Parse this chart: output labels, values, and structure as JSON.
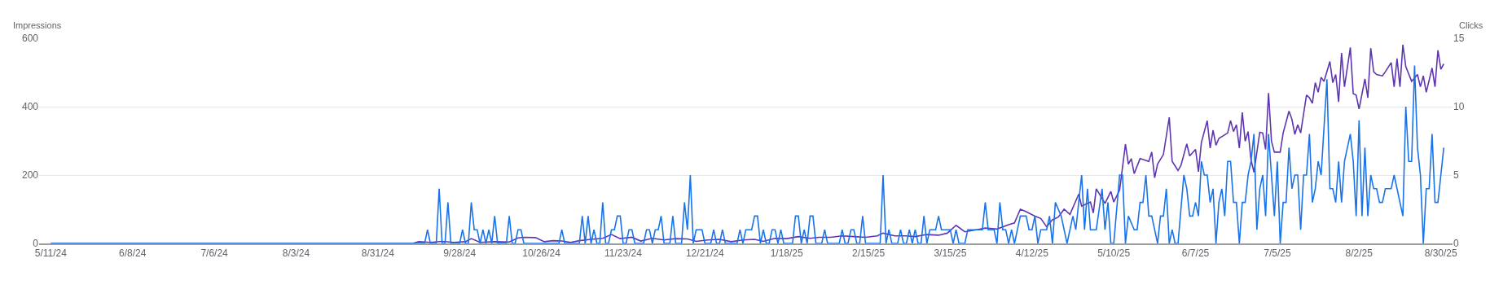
{
  "chart_data": {
    "type": "line",
    "ylabel": "Impressions",
    "y2label": "Clicks",
    "xlim": [
      "2024-05-07",
      "2025-09-03"
    ],
    "xticks": [
      {
        "value": "2024-05-11",
        "label": "5/11/24"
      },
      {
        "value": "2024-06-08",
        "label": "6/8/24"
      },
      {
        "value": "2024-07-06",
        "label": "7/6/24"
      },
      {
        "value": "2024-08-03",
        "label": "8/3/24"
      },
      {
        "value": "2024-08-31",
        "label": "8/31/24"
      },
      {
        "value": "2024-09-28",
        "label": "9/28/24"
      },
      {
        "value": "2024-10-26",
        "label": "10/26/24"
      },
      {
        "value": "2024-11-23",
        "label": "11/23/24"
      },
      {
        "value": "2024-12-21",
        "label": "12/21/24"
      },
      {
        "value": "2025-01-18",
        "label": "1/18/25"
      },
      {
        "value": "2025-02-15",
        "label": "2/15/25"
      },
      {
        "value": "2025-03-15",
        "label": "3/15/25"
      },
      {
        "value": "2025-04-12",
        "label": "4/12/25"
      },
      {
        "value": "2025-05-10",
        "label": "5/10/25"
      },
      {
        "value": "2025-06-07",
        "label": "6/7/25"
      },
      {
        "value": "2025-07-05",
        "label": "7/5/25"
      },
      {
        "value": "2025-08-02",
        "label": "8/2/25"
      },
      {
        "value": "2025-08-30",
        "label": "8/30/25"
      }
    ],
    "ylim": [
      0,
      600
    ],
    "yticks": [
      0,
      200,
      400,
      600
    ],
    "y2lim": [
      0,
      15
    ],
    "y2ticks": [
      0,
      5,
      10,
      15
    ],
    "grid": "y",
    "series": [
      {
        "color": "#5e35b1",
        "x": [
          "2024-05-11",
          "2024-09-12",
          "2024-09-14",
          "2024-09-18",
          "2024-09-22",
          "2024-09-26",
          "2024-09-30",
          "2024-10-02",
          "2024-10-05",
          "2024-10-10",
          "2024-10-15",
          "2024-10-18",
          "2024-10-20",
          "2024-10-24",
          "2024-10-27",
          "2024-10-30",
          "2024-11-02",
          "2024-11-05",
          "2024-11-08",
          "2024-11-12",
          "2024-11-16",
          "2024-11-19",
          "2024-11-22",
          "2024-11-26",
          "2024-11-29",
          "2024-12-03",
          "2024-12-07",
          "2024-12-11",
          "2024-12-15",
          "2024-12-18",
          "2024-12-22",
          "2024-12-26",
          "2024-12-30",
          "2025-01-03",
          "2025-01-07",
          "2025-01-10",
          "2025-01-14",
          "2025-01-18",
          "2025-01-22",
          "2025-01-26",
          "2025-01-29",
          "2025-02-02",
          "2025-02-06",
          "2025-02-10",
          "2025-02-14",
          "2025-02-18",
          "2025-02-20",
          "2025-02-24",
          "2025-02-28",
          "2025-03-03",
          "2025-03-07",
          "2025-03-11",
          "2025-03-14",
          "2025-03-17",
          "2025-03-20",
          "2025-03-24",
          "2025-03-27",
          "2025-03-31",
          "2025-04-04",
          "2025-04-06",
          "2025-04-08",
          "2025-04-10",
          "2025-04-13",
          "2025-04-15",
          "2025-04-17",
          "2025-04-19",
          "2025-04-21",
          "2025-04-23",
          "2025-04-25",
          "2025-04-28",
          "2025-04-29",
          "2025-05-02",
          "2025-05-03",
          "2025-05-04",
          "2025-05-07",
          "2025-05-09",
          "2025-05-10",
          "2025-05-12",
          "2025-05-14",
          "2025-05-15",
          "2025-05-16",
          "2025-05-17",
          "2025-05-19",
          "2025-05-22",
          "2025-05-23",
          "2025-05-24",
          "2025-05-25",
          "2025-05-27",
          "2025-05-29",
          "2025-05-30",
          "2025-06-01",
          "2025-06-02",
          "2025-06-04",
          "2025-06-05",
          "2025-06-07",
          "2025-06-08",
          "2025-06-09",
          "2025-06-11",
          "2025-06-12",
          "2025-06-13",
          "2025-06-14",
          "2025-06-15",
          "2025-06-18",
          "2025-06-19",
          "2025-06-20",
          "2025-06-21",
          "2025-06-22",
          "2025-06-23",
          "2025-06-24",
          "2025-06-25",
          "2025-06-26",
          "2025-06-27",
          "2025-06-29",
          "2025-06-30",
          "2025-07-01",
          "2025-07-02",
          "2025-07-03",
          "2025-07-04",
          "2025-07-06",
          "2025-07-07",
          "2025-07-09",
          "2025-07-10",
          "2025-07-11",
          "2025-07-12",
          "2025-07-13",
          "2025-07-15",
          "2025-07-16",
          "2025-07-17",
          "2025-07-18",
          "2025-07-19",
          "2025-07-20",
          "2025-07-21",
          "2025-07-23",
          "2025-07-24",
          "2025-07-25",
          "2025-07-26",
          "2025-07-27",
          "2025-07-28",
          "2025-07-30",
          "2025-07-31",
          "2025-08-01",
          "2025-08-02",
          "2025-08-04",
          "2025-08-05",
          "2025-08-06",
          "2025-08-07",
          "2025-08-08",
          "2025-08-10",
          "2025-08-11",
          "2025-08-13",
          "2025-08-14",
          "2025-08-15",
          "2025-08-16",
          "2025-08-17",
          "2025-08-18",
          "2025-08-20",
          "2025-08-22",
          "2025-08-23",
          "2025-08-24",
          "2025-08-25",
          "2025-08-27",
          "2025-08-28",
          "2025-08-29",
          "2025-08-30",
          "2025-08-31"
        ],
        "values": [
          0,
          0,
          5,
          3,
          6,
          3,
          5,
          14,
          3,
          5,
          4,
          16,
          18,
          17,
          5,
          8,
          7,
          3,
          8,
          12,
          15,
          26,
          14,
          18,
          7,
          15,
          10,
          14,
          13,
          6,
          10,
          12,
          5,
          10,
          12,
          6,
          15,
          14,
          20,
          15,
          18,
          18,
          22,
          20,
          18,
          22,
          30,
          22,
          22,
          20,
          26,
          24,
          30,
          53,
          34,
          40,
          45,
          42,
          55,
          60,
          100,
          93,
          80,
          73,
          49,
          69,
          77,
          100,
          85,
          144,
          109,
          121,
          89,
          160,
          117,
          152,
          121,
          156,
          290,
          232,
          248,
          204,
          248,
          240,
          267,
          192,
          232,
          260,
          369,
          240,
          213,
          228,
          291,
          256,
          275,
          210,
          295,
          359,
          279,
          331,
          287,
          307,
          323,
          359,
          327,
          347,
          279,
          383,
          299,
          327,
          244,
          208,
          325,
          323,
          275,
          440,
          299,
          267,
          267,
          323,
          387,
          363,
          319,
          347,
          323,
          434,
          426,
          410,
          470,
          442,
          486,
          474,
          532,
          470,
          494,
          414,
          557,
          458,
          573,
          438,
          434,
          393,
          481,
          426,
          571,
          502,
          494,
          490,
          502,
          529,
          458,
          541,
          458,
          581,
          517,
          474,
          494,
          458,
          490,
          442,
          513,
          458,
          565,
          509,
          525
        ]
      },
      {
        "color": "#1a73e8",
        "axis": "y2",
        "x": [
          "2024-05-11",
          "2024-09-16",
          "2024-09-17",
          "2024-09-18",
          "2024-09-20",
          "2024-09-21",
          "2024-09-22",
          "2024-09-23",
          "2024-09-24",
          "2024-09-25",
          "2024-09-28",
          "2024-09-29",
          "2024-09-30",
          "2024-10-01",
          "2024-10-02",
          "2024-10-03",
          "2024-10-04",
          "2024-10-05",
          "2024-10-06",
          "2024-10-07",
          "2024-10-08",
          "2024-10-09",
          "2024-10-10",
          "2024-10-11",
          "2024-10-14",
          "2024-10-15",
          "2024-10-16",
          "2024-10-17",
          "2024-10-18",
          "2024-10-19",
          "2024-10-20",
          "2024-11-01",
          "2024-11-02",
          "2024-11-03",
          "2024-11-08",
          "2024-11-09",
          "2024-11-10",
          "2024-11-11",
          "2024-11-12",
          "2024-11-13",
          "2024-11-14",
          "2024-11-15",
          "2024-11-16",
          "2024-11-17",
          "2024-11-18",
          "2024-11-19",
          "2024-11-20",
          "2024-11-21",
          "2024-11-22",
          "2024-11-23",
          "2024-11-24",
          "2024-11-25",
          "2024-11-26",
          "2024-11-27",
          "2024-11-30",
          "2024-12-01",
          "2024-12-02",
          "2024-12-03",
          "2024-12-04",
          "2024-12-05",
          "2024-12-06",
          "2024-12-07",
          "2024-12-09",
          "2024-12-10",
          "2024-12-11",
          "2024-12-13",
          "2024-12-14",
          "2024-12-15",
          "2024-12-16",
          "2024-12-17",
          "2024-12-18",
          "2024-12-19",
          "2024-12-20",
          "2024-12-21",
          "2024-12-23",
          "2024-12-24",
          "2024-12-25",
          "2024-12-26",
          "2024-12-27",
          "2024-12-28",
          "2025-01-01",
          "2025-01-02",
          "2025-01-03",
          "2025-01-04",
          "2025-01-05",
          "2025-01-06",
          "2025-01-07",
          "2025-01-08",
          "2025-01-09",
          "2025-01-10",
          "2025-01-11",
          "2025-01-12",
          "2025-01-13",
          "2025-01-14",
          "2025-01-15",
          "2025-01-16",
          "2025-01-17",
          "2025-01-20",
          "2025-01-21",
          "2025-01-22",
          "2025-01-23",
          "2025-01-24",
          "2025-01-25",
          "2025-01-26",
          "2025-01-27",
          "2025-01-28",
          "2025-01-30",
          "2025-01-31",
          "2025-02-01",
          "2025-02-05",
          "2025-02-06",
          "2025-02-07",
          "2025-02-08",
          "2025-02-09",
          "2025-02-10",
          "2025-02-11",
          "2025-02-12",
          "2025-02-13",
          "2025-02-14",
          "2025-02-19",
          "2025-02-20",
          "2025-02-21",
          "2025-02-22",
          "2025-02-23",
          "2025-02-25",
          "2025-02-26",
          "2025-02-27",
          "2025-02-28",
          "2025-03-01",
          "2025-03-02",
          "2025-03-03",
          "2025-03-04",
          "2025-03-05",
          "2025-03-06",
          "2025-03-07",
          "2025-03-08",
          "2025-03-09",
          "2025-03-10",
          "2025-03-11",
          "2025-03-12",
          "2025-03-13",
          "2025-03-14",
          "2025-03-15",
          "2025-03-16",
          "2025-03-17",
          "2025-03-18",
          "2025-03-20",
          "2025-03-21",
          "2025-03-22",
          "2025-03-23",
          "2025-03-24",
          "2025-03-25",
          "2025-03-26",
          "2025-03-27",
          "2025-03-28",
          "2025-03-29",
          "2025-03-30",
          "2025-03-31",
          "2025-04-01",
          "2025-04-02",
          "2025-04-03",
          "2025-04-04",
          "2025-04-05",
          "2025-04-06",
          "2025-04-07",
          "2025-04-08",
          "2025-04-09",
          "2025-04-10",
          "2025-04-11",
          "2025-04-12",
          "2025-04-13",
          "2025-04-14",
          "2025-04-15",
          "2025-04-16",
          "2025-04-17",
          "2025-04-18",
          "2025-04-19",
          "2025-04-20",
          "2025-04-22",
          "2025-04-24",
          "2025-04-26",
          "2025-04-27",
          "2025-04-29",
          "2025-04-30",
          "2025-05-01",
          "2025-05-02",
          "2025-05-04",
          "2025-05-06",
          "2025-05-07",
          "2025-05-08",
          "2025-05-09",
          "2025-05-10",
          "2025-05-12",
          "2025-05-13",
          "2025-05-14",
          "2025-05-15",
          "2025-05-17",
          "2025-05-18",
          "2025-05-19",
          "2025-05-20",
          "2025-05-21",
          "2025-05-22",
          "2025-05-23",
          "2025-05-25",
          "2025-05-26",
          "2025-05-27",
          "2025-05-28",
          "2025-05-29",
          "2025-05-30",
          "2025-05-31",
          "2025-06-01",
          "2025-06-03",
          "2025-06-04",
          "2025-06-05",
          "2025-06-06",
          "2025-06-07",
          "2025-06-08",
          "2025-06-09",
          "2025-06-10",
          "2025-06-11",
          "2025-06-12",
          "2025-06-13",
          "2025-06-14",
          "2025-06-15",
          "2025-06-16",
          "2025-06-17",
          "2025-06-18",
          "2025-06-19",
          "2025-06-20",
          "2025-06-21",
          "2025-06-22",
          "2025-06-23",
          "2025-06-24",
          "2025-06-25",
          "2025-06-26",
          "2025-06-27",
          "2025-06-28",
          "2025-06-29",
          "2025-06-30",
          "2025-07-01",
          "2025-07-02",
          "2025-07-03",
          "2025-07-04",
          "2025-07-05",
          "2025-07-06",
          "2025-07-07",
          "2025-07-08",
          "2025-07-09",
          "2025-07-10",
          "2025-07-11",
          "2025-07-12",
          "2025-07-13",
          "2025-07-14",
          "2025-07-15",
          "2025-07-16",
          "2025-07-17",
          "2025-07-18",
          "2025-07-19",
          "2025-07-20",
          "2025-07-22",
          "2025-07-23",
          "2025-07-24",
          "2025-07-25",
          "2025-07-26",
          "2025-07-27",
          "2025-07-28",
          "2025-07-30",
          "2025-07-31",
          "2025-08-01",
          "2025-08-02",
          "2025-08-03",
          "2025-08-04",
          "2025-08-05",
          "2025-08-06",
          "2025-08-07",
          "2025-08-08",
          "2025-08-09",
          "2025-08-10",
          "2025-08-11",
          "2025-08-12",
          "2025-08-13",
          "2025-08-14",
          "2025-08-17",
          "2025-08-18",
          "2025-08-19",
          "2025-08-20",
          "2025-08-21",
          "2025-08-22",
          "2025-08-23",
          "2025-08-24",
          "2025-08-25",
          "2025-08-26",
          "2025-08-27",
          "2025-08-28",
          "2025-08-29",
          "2025-08-31"
        ],
        "values": [
          0,
          0,
          1,
          0,
          0,
          4,
          0,
          0,
          3,
          0,
          0,
          1,
          0,
          0,
          3,
          1,
          1,
          0,
          1,
          0,
          1,
          0,
          2,
          0,
          0,
          2,
          0,
          0,
          1,
          1,
          0,
          0,
          1,
          0,
          0,
          2,
          0,
          2,
          0,
          1,
          0,
          0,
          3,
          0,
          0,
          1,
          1,
          2,
          2,
          0,
          0,
          1,
          1,
          0,
          0,
          1,
          1,
          0,
          1,
          1,
          2,
          0,
          0,
          2,
          0,
          0,
          3,
          1,
          5,
          0,
          1,
          1,
          1,
          0,
          0,
          1,
          0,
          0,
          1,
          0,
          0,
          1,
          0,
          1,
          1,
          1,
          2,
          2,
          0,
          1,
          0,
          0,
          1,
          1,
          0,
          1,
          0,
          0,
          2,
          2,
          0,
          1,
          0,
          2,
          2,
          0,
          0,
          1,
          0,
          0,
          1,
          0,
          0,
          1,
          1,
          0,
          0,
          2,
          0,
          0,
          5,
          0,
          1,
          0,
          0,
          1,
          0,
          0,
          1,
          0,
          1,
          0,
          0,
          2,
          0,
          1,
          1,
          1,
          2,
          1,
          1,
          1,
          1,
          0,
          1,
          0,
          0,
          1,
          1,
          1,
          1,
          1,
          1,
          3,
          1,
          1,
          1,
          0,
          3,
          1,
          1,
          0,
          1,
          0,
          1,
          2,
          2,
          2,
          1,
          1,
          2,
          0,
          1,
          1,
          1,
          2,
          0,
          3,
          2,
          0,
          2,
          1,
          5,
          1,
          4,
          1,
          1,
          4,
          1,
          3,
          0,
          0,
          5,
          5,
          0,
          2,
          1,
          1,
          3,
          3,
          5,
          2,
          2,
          0,
          2,
          2,
          4,
          0,
          1,
          0,
          0,
          5,
          4,
          2,
          2,
          3,
          2,
          6,
          5,
          5,
          3,
          4,
          0,
          3,
          4,
          2,
          6,
          6,
          3,
          3,
          0,
          3,
          3,
          5,
          6,
          8,
          1,
          4,
          5,
          2,
          8,
          5,
          2,
          6,
          0,
          3,
          3,
          7,
          4,
          5,
          5,
          1,
          5,
          5,
          8,
          3,
          4,
          6,
          5,
          12,
          4,
          4,
          3,
          6,
          3,
          6,
          8,
          6,
          2,
          9,
          2,
          7,
          2,
          5,
          4,
          4,
          3,
          3,
          4,
          4,
          4,
          5,
          2,
          10,
          6,
          6,
          13,
          7,
          5,
          0,
          4,
          4,
          8,
          3,
          3,
          7
        ]
      }
    ]
  }
}
